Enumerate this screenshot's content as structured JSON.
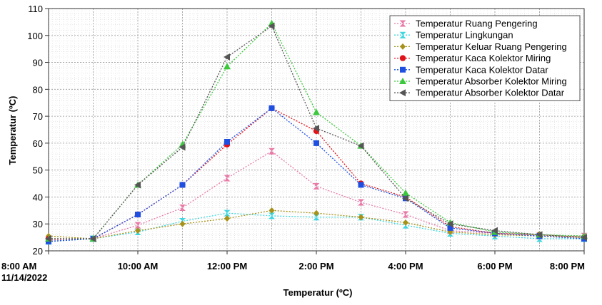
{
  "chart_data": {
    "type": "line",
    "xlabel": "Temperatur (ºC)",
    "ylabel": "Temperatur (ºC)",
    "ylim": [
      20,
      110
    ],
    "yticks": [
      20,
      30,
      40,
      50,
      60,
      70,
      80,
      90,
      100,
      110
    ],
    "x_hours": [
      8,
      9,
      10,
      11,
      12,
      13,
      14,
      15,
      16,
      17,
      18,
      19,
      20
    ],
    "xlim": [
      8,
      20
    ],
    "xticks": [
      {
        "h": 8,
        "label": "8:00 AM",
        "label2": "11/14/2022"
      },
      {
        "h": 10,
        "label": "10:00 AM"
      },
      {
        "h": 12,
        "label": "12:00 PM"
      },
      {
        "h": 14,
        "label": "2:00 PM"
      },
      {
        "h": 16,
        "label": "4:00 PM"
      },
      {
        "h": 18,
        "label": "6:00 PM"
      },
      {
        "h": 20,
        "label": "8:00 PM"
      }
    ],
    "grid": true,
    "legend_position": "top-right",
    "series": [
      {
        "name": "Temperatur Ruang Pengering",
        "color": "#e87aa8",
        "marker": "hourglass",
        "values": [
          24.0,
          24.5,
          29.5,
          36.0,
          47.0,
          57.0,
          44.0,
          38.0,
          33.5,
          27.5,
          26.5,
          25.5,
          25.5
        ]
      },
      {
        "name": "Temperatur Lingkungan",
        "color": "#3fd6e0",
        "marker": "hourglass",
        "values": [
          23.5,
          24.5,
          27.0,
          31.0,
          34.0,
          33.0,
          32.5,
          32.5,
          29.5,
          26.5,
          25.5,
          24.5,
          24.5
        ]
      },
      {
        "name": "Temperatur Keluar Ruang Pengering",
        "color": "#a6921a",
        "marker": "diamond",
        "values": [
          25.5,
          24.5,
          27.5,
          30.0,
          32.0,
          35.0,
          34.0,
          32.5,
          30.5,
          27.0,
          26.0,
          25.5,
          25.0
        ]
      },
      {
        "name": "Temperatur Kaca Kolektor Miring",
        "color": "#e0131a",
        "marker": "circle",
        "values": [
          24.5,
          24.5,
          33.5,
          44.5,
          59.5,
          73.0,
          64.5,
          45.0,
          40.0,
          29.0,
          26.5,
          26.0,
          25.0
        ]
      },
      {
        "name": "Temperatur Kaca Kolektor Datar",
        "color": "#1e4fe0",
        "marker": "square",
        "values": [
          23.5,
          24.5,
          33.5,
          44.5,
          60.5,
          73.0,
          60.0,
          44.5,
          39.5,
          28.5,
          26.5,
          25.5,
          24.5
        ]
      },
      {
        "name": "Temperatur Absorber Kolektor Miring",
        "color": "#3cc83c",
        "marker": "triangle",
        "values": [
          24.5,
          24.5,
          44.5,
          59.5,
          88.5,
          104.5,
          71.5,
          59.0,
          41.5,
          30.5,
          27.0,
          26.0,
          25.5
        ]
      },
      {
        "name": "Temperatur Absorber Kolektor Datar",
        "color": "#555555",
        "marker": "triangle-left",
        "values": [
          24.5,
          24.5,
          44.5,
          58.5,
          92.0,
          103.5,
          65.5,
          59.0,
          39.5,
          30.0,
          27.5,
          26.0,
          25.0
        ]
      }
    ]
  }
}
